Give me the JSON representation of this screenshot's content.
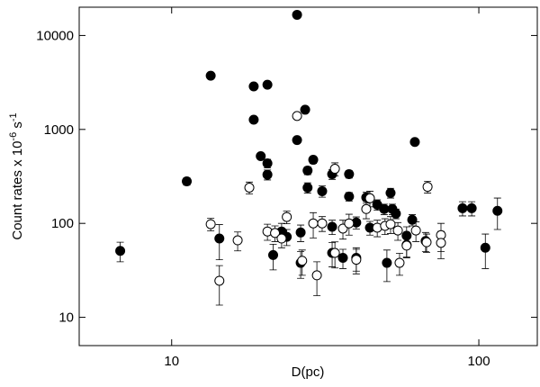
{
  "chart_data": {
    "type": "scatter",
    "xlabel": "D(pc)",
    "ylabel": [
      {
        "text": "Count rates x 10"
      },
      {
        "text": "-6",
        "sup": true
      },
      {
        "text": " s"
      },
      {
        "text": "-1",
        "sup": true
      }
    ],
    "xlog": true,
    "ylog": true,
    "xlim": [
      5,
      155
    ],
    "ylim": [
      5,
      20000
    ],
    "xticks": [
      10,
      100
    ],
    "yticks": [
      10,
      100,
      1000,
      10000
    ],
    "series": [
      {
        "marker": "filled",
        "color": "#000000",
        "x": [
          6.8,
          11.2,
          13.4,
          14.3,
          18.5,
          18.5,
          19.5,
          20.5,
          20.5,
          20.5,
          21.4,
          22.8,
          23.7,
          25.6,
          25.6,
          27.7,
          26.3,
          26.3,
          27.2,
          27.7,
          28.9,
          30.9,
          33.3,
          33.3,
          33.3,
          36.1,
          37.8,
          37.8,
          39.9,
          39.9,
          43,
          44.2,
          46.7,
          49.2,
          51.6,
          52.3,
          53.7,
          50.2,
          58.2,
          60.7,
          61.9,
          67.1,
          88.5,
          94.8,
          105,
          115,
          58.2
        ],
        "values": [
          51,
          280,
          3730,
          69,
          2870,
          1270,
          520,
          2990,
          435,
          330,
          46,
          82,
          72,
          16600,
          770,
          240,
          38,
          80,
          1620,
          365,
          475,
          220,
          334,
          48.5,
          92,
          43,
          334,
          193,
          102,
          43,
          189,
          90,
          158,
          142,
          211,
          142,
          127,
          38,
          74,
          109,
          736,
          65,
          145,
          145,
          55,
          136,
          59
        ],
        "errors": [
          12,
          25,
          150,
          28,
          100,
          60,
          30,
          100,
          45,
          40,
          14,
          18,
          14,
          500,
          40,
          30,
          12,
          16,
          80,
          35,
          40,
          30,
          40,
          14,
          16,
          10,
          30,
          20,
          15,
          12,
          25,
          15,
          20,
          18,
          25,
          18,
          15,
          14,
          18,
          15,
          35,
          15,
          25,
          25,
          22,
          50,
          15
        ]
      },
      {
        "marker": "open",
        "color": "#000000",
        "x": [
          13.4,
          14.3,
          16.4,
          17.9,
          20.5,
          21.7,
          22.8,
          23.7,
          26.6,
          28.9,
          29.7,
          30.9,
          34,
          34,
          36.1,
          37.8,
          39.9,
          43,
          44.2,
          46.7,
          49.5,
          51.6,
          54.5,
          55.2,
          58.2,
          62.4,
          67.6,
          68.1,
          75.3,
          75.3,
          25.6
        ],
        "values": [
          98,
          24.5,
          66,
          240,
          82,
          79,
          69,
          117,
          40,
          100,
          28,
          100,
          381,
          48.5,
          88,
          100,
          41,
          142,
          185,
          90,
          94,
          98,
          84,
          38,
          58,
          84,
          63,
          245,
          75,
          62,
          1390
        ],
        "errors": [
          15,
          11,
          15,
          35,
          16,
          15,
          14,
          18,
          12,
          30,
          11,
          18,
          60,
          15,
          20,
          25,
          12,
          30,
          35,
          18,
          18,
          20,
          18,
          10,
          15,
          20,
          14,
          35,
          25,
          20,
          40
        ]
      }
    ]
  }
}
